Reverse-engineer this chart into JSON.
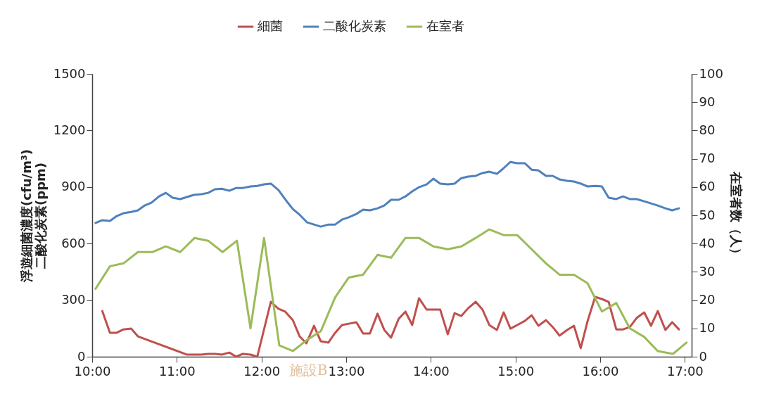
{
  "chart_data": {
    "type": "line",
    "ylabel": "浮遊細菌濃度(cfu/m³)\n二酸化炭素(ppm)",
    "y2label": "在室者数（人）",
    "annotations": [
      "施設B"
    ],
    "legend": "top",
    "marker": "none",
    "line_style": "solid",
    "grid": false,
    "xlim": [
      10,
      17.08
    ],
    "xticks": [
      {
        "value": 10,
        "label": "10:00"
      },
      {
        "value": 11,
        "label": "11:00"
      },
      {
        "value": 12,
        "label": "12:00"
      },
      {
        "value": 13,
        "label": "13:00"
      },
      {
        "value": 14,
        "label": "14:00"
      },
      {
        "value": 15,
        "label": "15:00"
      },
      {
        "value": 16,
        "label": "16:00"
      },
      {
        "value": 17,
        "label": "17:00"
      }
    ],
    "ylim": [
      0,
      1500
    ],
    "yticks": [
      0,
      300,
      600,
      900,
      1200,
      1500
    ],
    "y2lim": [
      0,
      100
    ],
    "y2ticks": [
      0,
      10,
      20,
      30,
      40,
      50,
      60,
      70,
      80,
      90,
      100
    ],
    "series": [
      {
        "name": "細菌",
        "color": "#c0504d",
        "x": [
          10.12,
          10.21,
          10.29,
          10.37,
          10.46,
          10.54,
          11.12,
          11.2,
          11.29,
          11.37,
          11.45,
          11.53,
          11.62,
          11.7,
          11.78,
          11.87,
          11.95,
          12.11,
          12.2,
          12.28,
          12.37,
          12.45,
          12.53,
          12.62,
          12.7,
          12.79,
          12.87,
          12.95,
          13.03,
          13.12,
          13.2,
          13.28,
          13.37,
          13.45,
          13.53,
          13.62,
          13.7,
          13.78,
          13.86,
          13.95,
          14.03,
          14.11,
          14.2,
          14.28,
          14.36,
          14.44,
          14.53,
          14.61,
          14.69,
          14.78,
          14.86,
          14.94,
          15.02,
          15.11,
          15.19,
          15.27,
          15.36,
          15.44,
          15.52,
          15.61,
          15.69,
          15.77,
          15.85,
          15.94,
          16.02,
          16.1,
          16.19,
          16.27,
          16.35,
          16.43,
          16.52,
          16.6,
          16.68,
          16.77,
          16.85,
          16.93
        ],
        "values": [
          242,
          127,
          127,
          145,
          149,
          108,
          11,
          11,
          11,
          15,
          15,
          11,
          22,
          0,
          15,
          11,
          0,
          291,
          254,
          239,
          194,
          108,
          71,
          164,
          82,
          75,
          127,
          168,
          175,
          183,
          123,
          123,
          228,
          142,
          101,
          201,
          239,
          168,
          310,
          250,
          250,
          250,
          119,
          231,
          216,
          257,
          291,
          250,
          168,
          142,
          235,
          149,
          168,
          190,
          220,
          164,
          194,
          157,
          112,
          142,
          164,
          45,
          187,
          317,
          306,
          291,
          145,
          145,
          157,
          205,
          235,
          164,
          242,
          142,
          183,
          145
        ]
      },
      {
        "name": "二酸化炭素",
        "color": "#4f81bd",
        "x": [
          10.04,
          10.12,
          10.21,
          10.29,
          10.37,
          10.46,
          10.54,
          10.62,
          10.7,
          10.79,
          10.87,
          10.95,
          11.04,
          11.12,
          11.2,
          11.29,
          11.37,
          11.45,
          11.53,
          11.62,
          11.7,
          11.78,
          11.87,
          11.95,
          12.03,
          12.11,
          12.2,
          12.31,
          12.37,
          12.45,
          12.54,
          12.62,
          12.7,
          12.79,
          12.87,
          12.95,
          13.03,
          13.12,
          13.2,
          13.28,
          13.37,
          13.45,
          13.53,
          13.62,
          13.7,
          13.78,
          13.86,
          13.95,
          14.03,
          14.11,
          14.2,
          14.28,
          14.36,
          14.44,
          14.53,
          14.61,
          14.69,
          14.78,
          14.86,
          14.94,
          15.02,
          15.11,
          15.19,
          15.27,
          15.36,
          15.44,
          15.52,
          15.61,
          15.69,
          15.77,
          15.85,
          15.94,
          16.02,
          16.1,
          16.19,
          16.27,
          16.35,
          16.43,
          16.52,
          16.6,
          16.68,
          16.77,
          16.85,
          16.93
        ],
        "values": [
          709,
          724,
          720,
          746,
          761,
          768,
          776,
          802,
          817,
          850,
          869,
          843,
          836,
          847,
          858,
          862,
          869,
          888,
          891,
          880,
          895,
          895,
          903,
          906,
          914,
          918,
          884,
          817,
          783,
          753,
          712,
          701,
          690,
          701,
          701,
          727,
          739,
          757,
          780,
          776,
          787,
          802,
          832,
          832,
          850,
          877,
          899,
          914,
          944,
          918,
          914,
          918,
          947,
          955,
          959,
          974,
          981,
          970,
          1000,
          1033,
          1026,
          1026,
          992,
          988,
          959,
          959,
          940,
          933,
          929,
          918,
          903,
          906,
          903,
          843,
          836,
          850,
          836,
          836,
          824,
          813,
          802,
          787,
          776,
          787
        ]
      },
      {
        "name": "在室者",
        "color": "#9bbb59",
        "axis": "y2",
        "x": [
          10.04,
          10.21,
          10.37,
          10.54,
          10.71,
          10.87,
          11.04,
          11.21,
          11.37,
          11.54,
          11.71,
          11.87,
          12.03,
          12.21,
          12.37,
          12.54,
          12.7,
          12.87,
          13.03,
          13.2,
          13.37,
          13.53,
          13.7,
          13.86,
          14.03,
          14.2,
          14.36,
          14.53,
          14.69,
          14.86,
          15.02,
          15.19,
          15.36,
          15.52,
          15.69,
          15.85,
          16.02,
          16.19,
          16.35,
          16.52,
          16.68,
          16.86,
          17.02
        ],
        "values": [
          24,
          32,
          33,
          37,
          37,
          39,
          37,
          42,
          41,
          37,
          41,
          10,
          42,
          4,
          2,
          6,
          9,
          21,
          28,
          29,
          36,
          35,
          42,
          42,
          39,
          38,
          39,
          42,
          45,
          43,
          43,
          38,
          33,
          29,
          29,
          26,
          16,
          19,
          10,
          7,
          2,
          1,
          5
        ]
      }
    ]
  }
}
